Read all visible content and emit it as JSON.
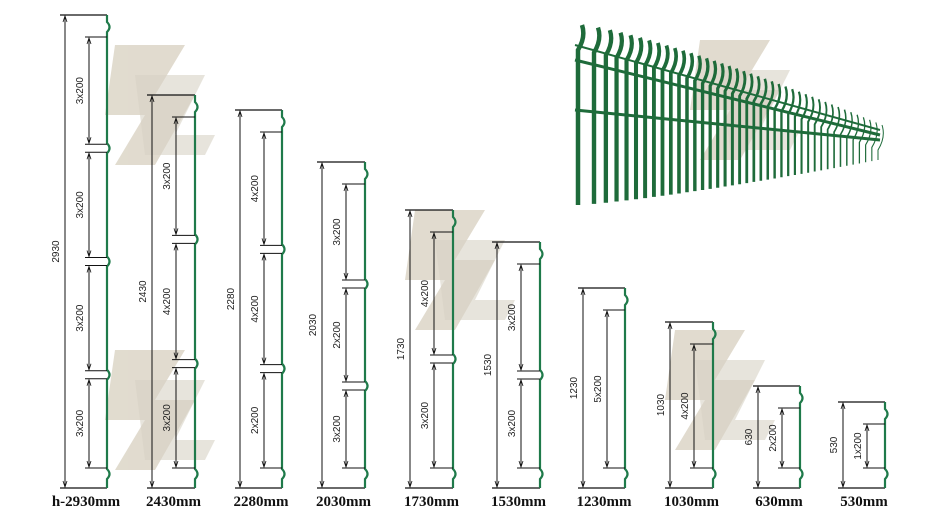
{
  "colors": {
    "post": "#1f7a4a",
    "line": "#111111",
    "watermark": "#c9bfa8",
    "fence": "#1e6b3a"
  },
  "panels": [
    {
      "height_label": "2930",
      "caption": "h-2930mm",
      "segments": [
        "3x200",
        "3x200",
        "3x200",
        "3x200"
      ]
    },
    {
      "height_label": "2430",
      "caption": "2430mm",
      "segments": [
        "3x200",
        "4x200",
        "3x200"
      ]
    },
    {
      "height_label": "2280",
      "caption": "2280mm",
      "segments": [
        "4x200",
        "4x200",
        "2x200"
      ]
    },
    {
      "height_label": "2030",
      "caption": "2030mm",
      "segments": [
        "3x200",
        "2x200",
        "3x200"
      ]
    },
    {
      "height_label": "1730",
      "caption": "1730mm",
      "segments": [
        "4x200",
        "3x200"
      ]
    },
    {
      "height_label": "1530",
      "caption": "1530mm",
      "segments": [
        "3x200",
        "3x200"
      ]
    },
    {
      "height_label": "1230",
      "caption": "1230mm",
      "segments": [
        "5x200"
      ]
    },
    {
      "height_label": "1030",
      "caption": "1030mm",
      "segments": [
        "4x200"
      ]
    },
    {
      "height_label": "630",
      "caption": "630mm",
      "segments": [
        "2x200"
      ]
    },
    {
      "height_label": "530",
      "caption": "530mm",
      "segments": [
        "1x200"
      ]
    }
  ],
  "photo": {
    "icon": "fence-photo"
  }
}
